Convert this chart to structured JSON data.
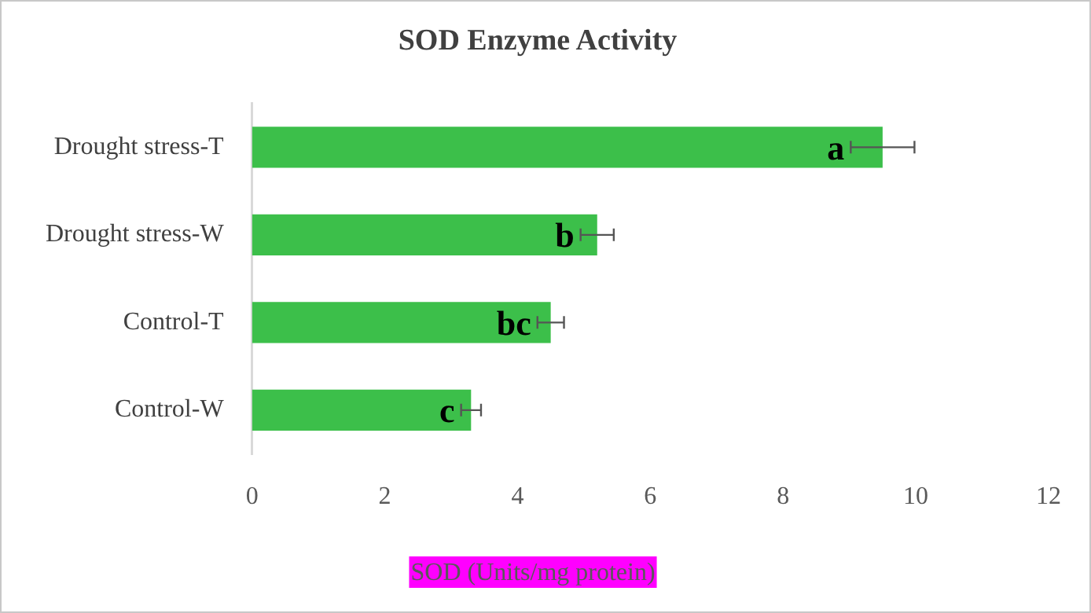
{
  "chart_data": {
    "type": "bar",
    "orientation": "horizontal",
    "title": "SOD Enzyme Activity",
    "xlabel": "SOD (Units/mg protein)",
    "categories": [
      "Drought stress-T",
      "Drought stress-W",
      "Control-T",
      "Control-W"
    ],
    "values": [
      9.5,
      5.2,
      4.5,
      3.3
    ],
    "errors": [
      0.48,
      0.25,
      0.2,
      0.15
    ],
    "color": "#3cbf4a",
    "xlim": [
      0,
      12
    ],
    "xticks": [
      0,
      2,
      4,
      6,
      8,
      10,
      12
    ],
    "grid": false,
    "legend": false,
    "annotations": [
      {
        "text": "a",
        "x": 9.5,
        "y": "Drought stress-T"
      },
      {
        "text": "b",
        "x": 5.2,
        "y": "Drought stress-W"
      },
      {
        "text": "bc",
        "x": 4.5,
        "y": "Control-T"
      },
      {
        "text": "c",
        "x": 3.3,
        "y": "Control-W"
      }
    ]
  }
}
